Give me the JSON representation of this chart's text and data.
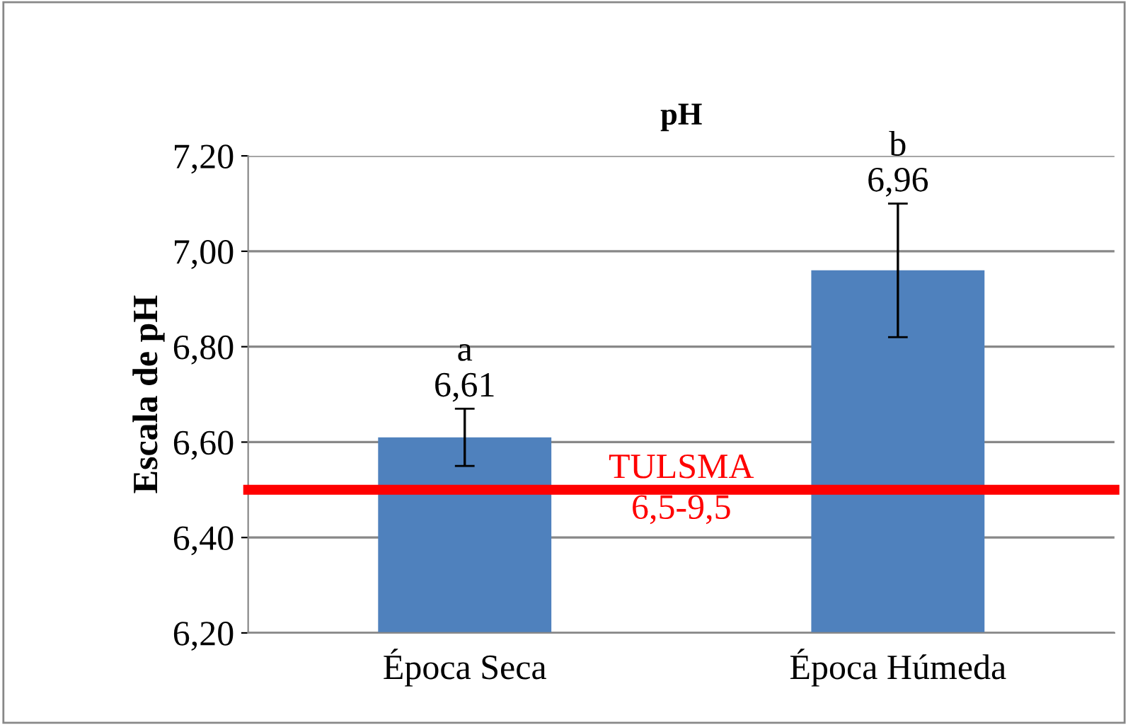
{
  "chart_data": {
    "type": "bar",
    "title": "pH",
    "ylabel": "Escala de pH",
    "categories": [
      "Época Seca",
      "Época Húmeda"
    ],
    "series": [
      {
        "color": "#4f81bd",
        "values": [
          6.61,
          6.96
        ],
        "errors": [
          0.06,
          0.14
        ],
        "value_labels": [
          "6,61",
          "6,96"
        ]
      }
    ],
    "ylim": [
      6.2,
      7.2
    ],
    "yticks": [
      {
        "value": 6.2,
        "label": "6,20"
      },
      {
        "value": 6.4,
        "label": "6,40"
      },
      {
        "value": 6.6,
        "label": "6,60"
      },
      {
        "value": 6.8,
        "label": "6,80"
      },
      {
        "value": 7.0,
        "label": "7,00"
      },
      {
        "value": 7.2,
        "label": "7,20"
      }
    ],
    "grid": "y",
    "ref_lines": [
      {
        "axis": "y",
        "value": 6.5,
        "label": "TULSMA\n6,5-9,5",
        "color": "#ff0000"
      }
    ],
    "annotations": [
      "a",
      "b"
    ]
  }
}
